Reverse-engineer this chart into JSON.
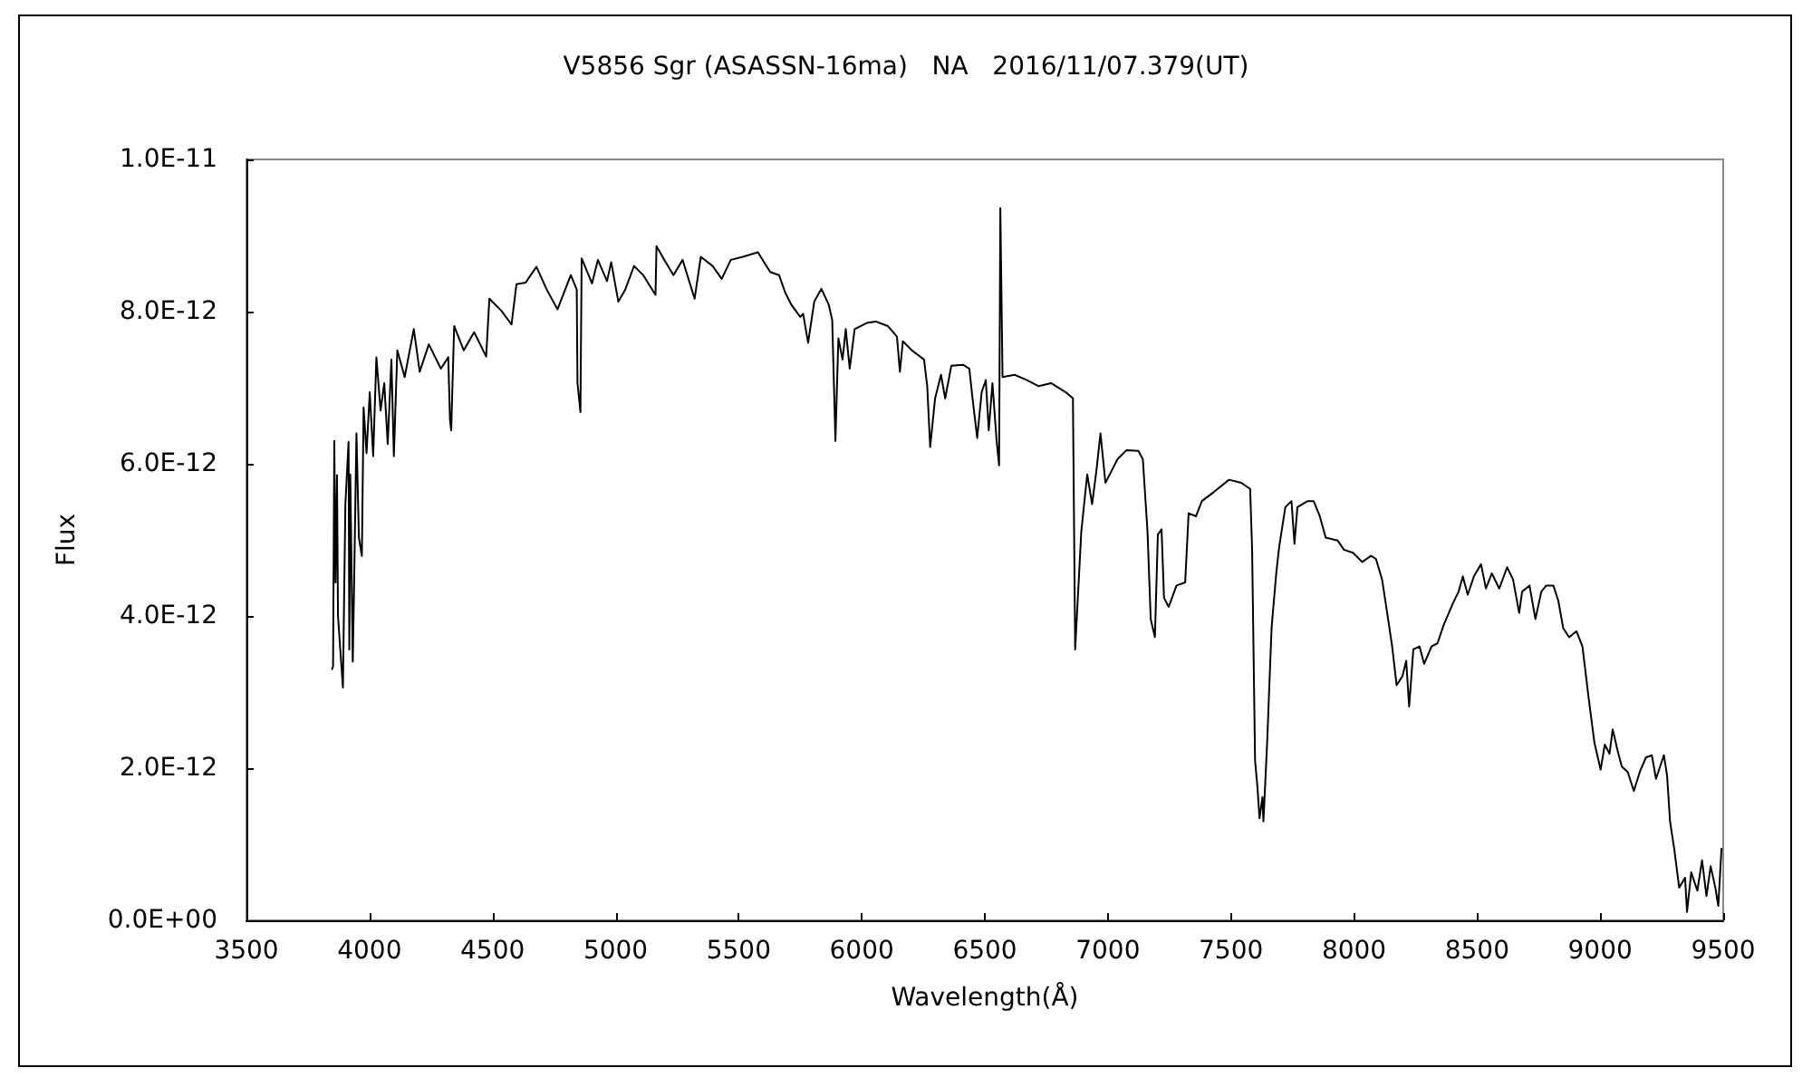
{
  "chart_data": {
    "type": "line",
    "title": "V5856 Sgr (ASASSN-16ma)   NA   2016/11/07.379(UT)",
    "xlabel": "Wavelength(Å)",
    "ylabel": "Flux",
    "x": [
      3848,
      3852,
      3857,
      3862,
      3868,
      3872,
      3892,
      3902,
      3915,
      3918,
      3922,
      3932,
      3937,
      3947,
      3957,
      3969,
      3976,
      3988,
      4001,
      4015,
      4028,
      4045,
      4060,
      4074,
      4089,
      4099,
      4113,
      4143,
      4180,
      4204,
      4241,
      4290,
      4320,
      4327,
      4332,
      4344,
      4383,
      4425,
      4474,
      4487,
      4536,
      4577,
      4597,
      4634,
      4678,
      4720,
      4764,
      4818,
      4842,
      4845,
      4857,
      4862,
      4904,
      4928,
      4965,
      4982,
      5011,
      5039,
      5075,
      5112,
      5162,
      5166,
      5198,
      5235,
      5272,
      5321,
      5346,
      5394,
      5431,
      5468,
      5517,
      5578,
      5628,
      5664,
      5689,
      5714,
      5750,
      5762,
      5782,
      5807,
      5836,
      5866,
      5880,
      5893,
      5905,
      5922,
      5935,
      5951,
      5971,
      6020,
      6057,
      6106,
      6143,
      6155,
      6167,
      6204,
      6253,
      6266,
      6278,
      6298,
      6322,
      6339,
      6364,
      6413,
      6437,
      6450,
      6469,
      6487,
      6504,
      6516,
      6531,
      6548,
      6558,
      6563,
      6572,
      6621,
      6671,
      6719,
      6769,
      6829,
      6858,
      6867,
      6892,
      6916,
      6936,
      6953,
      6970,
      6990,
      7014,
      7039,
      7076,
      7124,
      7142,
      7161,
      7174,
      7191,
      7203,
      7218,
      7228,
      7247,
      7279,
      7314,
      7328,
      7358,
      7382,
      7431,
      7492,
      7542,
      7578,
      7586,
      7598,
      7608,
      7616,
      7628,
      7632,
      7647,
      7665,
      7684,
      7696,
      7721,
      7746,
      7758,
      7770,
      7812,
      7836,
      7861,
      7885,
      7934,
      7959,
      7996,
      8033,
      8069,
      8089,
      8114,
      8131,
      8155,
      8173,
      8197,
      8212,
      8224,
      8241,
      8266,
      8285,
      8315,
      8339,
      8364,
      8401,
      8425,
      8442,
      8462,
      8487,
      8516,
      8536,
      8560,
      8590,
      8622,
      8646,
      8671,
      8683,
      8713,
      8737,
      8761,
      8781,
      8810,
      8830,
      8850,
      8874,
      8904,
      8928,
      8953,
      8977,
      9002,
      9019,
      9038,
      9051,
      9071,
      9088,
      9112,
      9137,
      9161,
      9186,
      9210,
      9227,
      9259,
      9272,
      9284,
      9301,
      9321,
      9345,
      9353,
      9370,
      9395,
      9414,
      9432,
      9449,
      9468,
      9480,
      9493
    ],
    "series": [
      {
        "color": "#000000",
        "values": [
          3.3e-12,
          3.34e-12,
          6.3e-12,
          4.44e-12,
          5.85e-12,
          4e-12,
          3.06e-12,
          5.47e-12,
          6.29e-12,
          3.56e-12,
          5.86e-12,
          3.4e-12,
          4.32e-12,
          6.4e-12,
          5.03e-12,
          4.79e-12,
          6.74e-12,
          6.14e-12,
          6.94e-12,
          6.1e-12,
          7.4e-12,
          6.7e-12,
          7.06e-12,
          6.26e-12,
          7.37e-12,
          6.1e-12,
          7.49e-12,
          7.14e-12,
          7.77e-12,
          7.21e-12,
          7.57e-12,
          7.25e-12,
          7.4e-12,
          6.58e-12,
          6.44e-12,
          7.81e-12,
          7.49e-12,
          7.73e-12,
          7.41e-12,
          8.17e-12,
          8.01e-12,
          7.83e-12,
          8.36e-12,
          8.38e-12,
          8.59e-12,
          8.29e-12,
          8.03e-12,
          8.48e-12,
          8.29e-12,
          7.06e-12,
          6.68e-12,
          8.7e-12,
          8.37e-12,
          8.68e-12,
          8.4e-12,
          8.65e-12,
          8.13e-12,
          8.29e-12,
          8.6e-12,
          8.48e-12,
          8.22e-12,
          8.86e-12,
          8.68e-12,
          8.48e-12,
          8.68e-12,
          8.17e-12,
          8.72e-12,
          8.6e-12,
          8.43e-12,
          8.68e-12,
          8.72e-12,
          8.78e-12,
          8.52e-12,
          8.48e-12,
          8.25e-12,
          8.09e-12,
          7.93e-12,
          7.97e-12,
          7.59e-12,
          8.13e-12,
          8.3e-12,
          8.09e-12,
          7.89e-12,
          6.3e-12,
          7.65e-12,
          7.37e-12,
          7.77e-12,
          7.25e-12,
          7.77e-12,
          7.85e-12,
          7.87e-12,
          7.81e-12,
          7.67e-12,
          7.21e-12,
          7.61e-12,
          7.49e-12,
          7.37e-12,
          7.02e-12,
          6.22e-12,
          6.86e-12,
          7.17e-12,
          6.86e-12,
          7.29e-12,
          7.3e-12,
          7.25e-12,
          6.86e-12,
          6.34e-12,
          6.94e-12,
          7.1e-12,
          6.44e-12,
          7.06e-12,
          6.3e-12,
          5.98e-12,
          9.36e-12,
          7.14e-12,
          7.17e-12,
          7.1e-12,
          7.02e-12,
          7.06e-12,
          6.94e-12,
          6.86e-12,
          3.56e-12,
          5.11e-12,
          5.86e-12,
          5.47e-12,
          5.9e-12,
          6.4e-12,
          5.75e-12,
          5.9e-12,
          6.06e-12,
          6.18e-12,
          6.17e-12,
          6.06e-12,
          5.11e-12,
          3.96e-12,
          3.72e-12,
          5.07e-12,
          5.14e-12,
          4.24e-12,
          4.12e-12,
          4.4e-12,
          4.44e-12,
          5.35e-12,
          5.31e-12,
          5.51e-12,
          5.63e-12,
          5.79e-12,
          5.75e-12,
          5.67e-12,
          4.87e-12,
          2.1e-12,
          1.74e-12,
          1.34e-12,
          1.62e-12,
          1.3e-12,
          2.33e-12,
          3.84e-12,
          4.56e-12,
          4.91e-12,
          5.43e-12,
          5.51e-12,
          4.95e-12,
          5.43e-12,
          5.51e-12,
          5.51e-12,
          5.31e-12,
          5.03e-12,
          4.99e-12,
          4.87e-12,
          4.83e-12,
          4.71e-12,
          4.79e-12,
          4.75e-12,
          4.48e-12,
          4.12e-12,
          3.6e-12,
          3.09e-12,
          3.21e-12,
          3.41e-12,
          2.81e-12,
          3.56e-12,
          3.6e-12,
          3.37e-12,
          3.6e-12,
          3.64e-12,
          3.88e-12,
          4.16e-12,
          4.32e-12,
          4.52e-12,
          4.28e-12,
          4.52e-12,
          4.68e-12,
          4.36e-12,
          4.56e-12,
          4.36e-12,
          4.64e-12,
          4.48e-12,
          4.04e-12,
          4.32e-12,
          4.4e-12,
          3.96e-12,
          4.32e-12,
          4.4e-12,
          4.4e-12,
          4.2e-12,
          3.84e-12,
          3.72e-12,
          3.8e-12,
          3.6e-12,
          2.93e-12,
          2.33e-12,
          1.98e-12,
          2.31e-12,
          2.19e-12,
          2.51e-12,
          2.23e-12,
          2.02e-12,
          1.95e-12,
          1.7e-12,
          1.95e-12,
          2.14e-12,
          2.17e-12,
          1.86e-12,
          2.17e-12,
          1.9e-12,
          1.3e-12,
          9.4e-13,
          4.3e-13,
          5.6e-13,
          1.1e-13,
          6.3e-13,
          3.9e-13,
          7.9e-13,
          3.2e-13,
          7.1e-13,
          4.3e-13,
          1.9e-13,
          9.4e-13
        ]
      }
    ],
    "xlim": [
      3500,
      9500
    ],
    "ylim": [
      0,
      1e-11
    ],
    "xticks": [
      3500,
      4000,
      4500,
      5000,
      5500,
      6000,
      6500,
      7000,
      7500,
      8000,
      8500,
      9000,
      9500
    ],
    "yticks": [
      {
        "value": 0,
        "label": "0.0E+00"
      },
      {
        "value": 2e-12,
        "label": "2.0E-12"
      },
      {
        "value": 4e-12,
        "label": "4.0E-12"
      },
      {
        "value": 6e-12,
        "label": "6.0E-12"
      },
      {
        "value": 8e-12,
        "label": "8.0E-12"
      },
      {
        "value": 1e-11,
        "label": "1.0E-11"
      }
    ],
    "marker": "none",
    "line_style": "solid"
  }
}
